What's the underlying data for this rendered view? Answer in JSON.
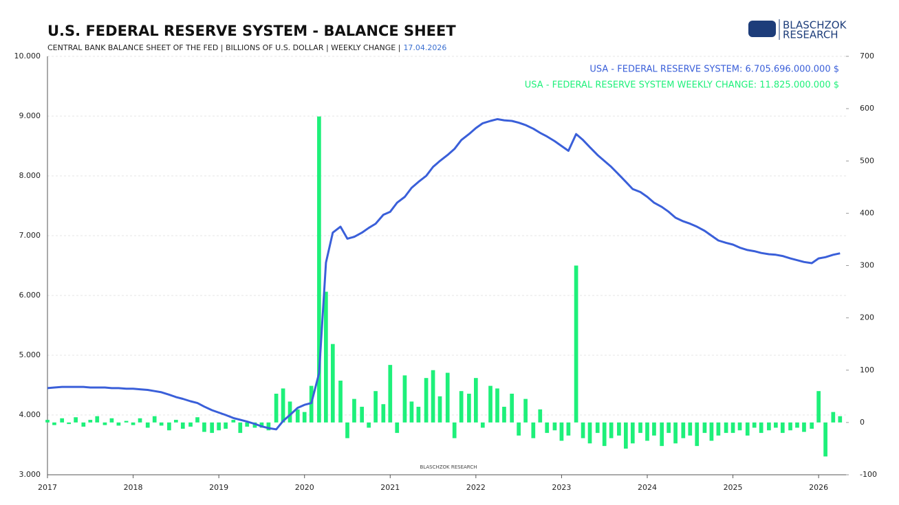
{
  "chart_data": {
    "type": "bar-line",
    "title": "U.S. FEDERAL RESERVE SYSTEM - BALANCE SHEET",
    "subtitle": "CENTRAL BANK BALANCE SHEET OF THE FED | BILLIONS OF U.S. DOLLAR | WEEKLY CHANGE |",
    "date": "17.04.2026",
    "logo_line1": "BLASCHZOK",
    "logo_line2": "RESEARCH",
    "watermark": "BLASCHZOK RESEARCH",
    "x": [
      2017.0,
      2017.08,
      2017.17,
      2017.25,
      2017.33,
      2017.42,
      2017.5,
      2017.58,
      2017.67,
      2017.75,
      2017.83,
      2017.92,
      2018.0,
      2018.08,
      2018.17,
      2018.25,
      2018.33,
      2018.42,
      2018.5,
      2018.58,
      2018.67,
      2018.75,
      2018.83,
      2018.92,
      2019.0,
      2019.08,
      2019.17,
      2019.25,
      2019.33,
      2019.42,
      2019.5,
      2019.58,
      2019.67,
      2019.75,
      2019.83,
      2019.92,
      2020.0,
      2020.08,
      2020.17,
      2020.25,
      2020.33,
      2020.42,
      2020.5,
      2020.58,
      2020.67,
      2020.75,
      2020.83,
      2020.92,
      2021.0,
      2021.08,
      2021.17,
      2021.25,
      2021.33,
      2021.42,
      2021.5,
      2021.58,
      2021.67,
      2021.75,
      2021.83,
      2021.92,
      2022.0,
      2022.08,
      2022.17,
      2022.25,
      2022.33,
      2022.42,
      2022.5,
      2022.58,
      2022.67,
      2022.75,
      2022.83,
      2022.92,
      2023.0,
      2023.08,
      2023.17,
      2023.25,
      2023.33,
      2023.42,
      2023.5,
      2023.58,
      2023.67,
      2023.75,
      2023.83,
      2023.92,
      2024.0,
      2024.08,
      2024.17,
      2024.25,
      2024.33,
      2024.42,
      2024.5,
      2024.58,
      2024.67,
      2024.75,
      2024.83,
      2024.92,
      2025.0,
      2025.08,
      2025.17,
      2025.25,
      2025.33,
      2025.42,
      2025.5,
      2025.58,
      2025.67,
      2025.75,
      2025.83,
      2025.92,
      2026.0,
      2026.08,
      2026.17,
      2026.25
    ],
    "series": [
      {
        "name": "USA - FEDERAL RESERVE SYSTEM: 6.705.696.000.000 $",
        "color": "#3a5fd9",
        "chart": "line",
        "values": [
          4450,
          4460,
          4470,
          4470,
          4470,
          4470,
          4460,
          4460,
          4460,
          4450,
          4450,
          4440,
          4440,
          4430,
          4420,
          4400,
          4380,
          4340,
          4300,
          4270,
          4230,
          4200,
          4140,
          4080,
          4040,
          4000,
          3950,
          3920,
          3890,
          3850,
          3810,
          3780,
          3760,
          3900,
          4000,
          4120,
          4170,
          4200,
          4700,
          6550,
          7050,
          7150,
          6950,
          6980,
          7050,
          7130,
          7200,
          7350,
          7400,
          7550,
          7650,
          7800,
          7900,
          8000,
          8150,
          8250,
          8350,
          8450,
          8600,
          8700,
          8800,
          8880,
          8920,
          8950,
          8930,
          8920,
          8890,
          8850,
          8790,
          8720,
          8660,
          8580,
          8500,
          8420,
          8700,
          8600,
          8480,
          8350,
          8250,
          8150,
          8020,
          7900,
          7780,
          7730,
          7650,
          7550,
          7480,
          7400,
          7300,
          7240,
          7200,
          7150,
          7080,
          7000,
          6920,
          6880,
          6850,
          6800,
          6760,
          6740,
          6710,
          6690,
          6680,
          6660,
          6620,
          6590,
          6560,
          6540,
          6620,
          6640,
          6680,
          6705
        ]
      },
      {
        "name": "USA - FEDERAL RESERVE SYSTEM WEEKLY CHANGE: 11.825.000.000 $",
        "color": "#1ef07a",
        "chart": "bar",
        "axis": "y2",
        "values": [
          5,
          -5,
          8,
          -3,
          10,
          -8,
          5,
          12,
          -5,
          8,
          -6,
          3,
          -5,
          8,
          -10,
          12,
          -6,
          -15,
          5,
          -12,
          -8,
          10,
          -18,
          -20,
          -15,
          -12,
          5,
          -20,
          -8,
          -10,
          -10,
          -15,
          55,
          65,
          40,
          25,
          20,
          70,
          585,
          250,
          150,
          80,
          -30,
          45,
          30,
          -10,
          60,
          35,
          110,
          -20,
          90,
          40,
          30,
          85,
          100,
          50,
          95,
          -30,
          60,
          55,
          85,
          -10,
          70,
          65,
          30,
          55,
          -25,
          45,
          -30,
          25,
          -20,
          -15,
          -35,
          -25,
          300,
          -30,
          -40,
          -20,
          -45,
          -30,
          -25,
          -50,
          -40,
          -20,
          -35,
          -25,
          -45,
          -20,
          -40,
          -30,
          -25,
          -45,
          -20,
          -35,
          -25,
          -20,
          -20,
          -15,
          -25,
          -10,
          -20,
          -15,
          -10,
          -20,
          -15,
          -10,
          -18,
          -12,
          60,
          -65,
          20,
          12
        ]
      }
    ],
    "xlim": [
      2017,
      2026.32
    ],
    "xticks": [
      2017,
      2018,
      2019,
      2020,
      2021,
      2022,
      2023,
      2024,
      2025,
      2026
    ],
    "ylim": [
      3000,
      10000
    ],
    "yticks": [
      {
        "value": 3000,
        "label": "3.000"
      },
      {
        "value": 4000,
        "label": "4.000"
      },
      {
        "value": 5000,
        "label": "5.000"
      },
      {
        "value": 6000,
        "label": "6.000"
      },
      {
        "value": 7000,
        "label": "7.000"
      },
      {
        "value": 8000,
        "label": "8.000"
      },
      {
        "value": 9000,
        "label": "9.000"
      },
      {
        "value": 10000,
        "label": "10.000"
      }
    ],
    "y2lim": [
      -100,
      700
    ],
    "y2ticks": [
      -100,
      0,
      100,
      200,
      300,
      400,
      500,
      600,
      700
    ],
    "grid": true
  }
}
